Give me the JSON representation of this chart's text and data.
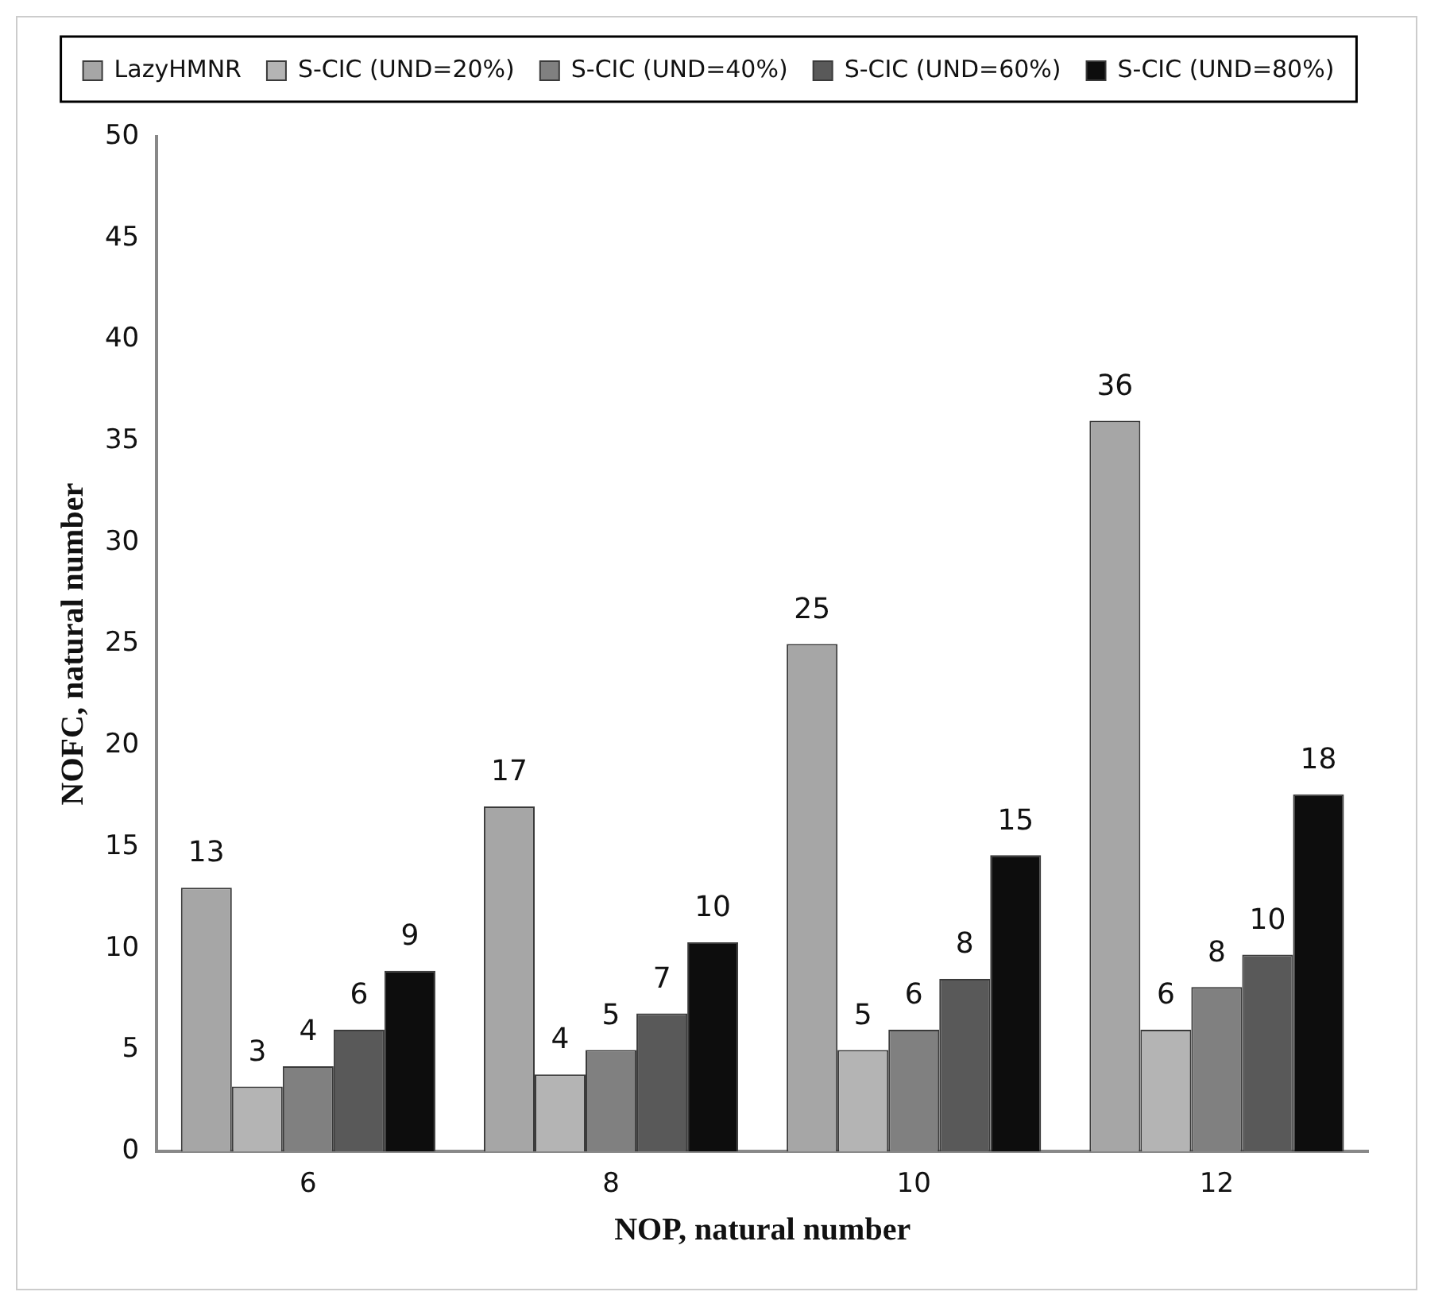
{
  "chart_data": {
    "type": "bar",
    "xlabel": "NOP, natural number",
    "ylabel": "NOFC, natural number",
    "categories": [
      "6",
      "8",
      "10",
      "12"
    ],
    "series": [
      {
        "name": "LazyHMNR",
        "color": "#a6a6a6",
        "values": [
          13,
          17,
          25,
          36
        ],
        "value_labels": [
          "13",
          "17",
          "25",
          "36"
        ]
      },
      {
        "name": "S-CIC (UND=20%)",
        "color": "#b4b4b4",
        "values": [
          3.2,
          3.8,
          5,
          6
        ],
        "value_labels": [
          "3",
          "4",
          "5",
          "6"
        ]
      },
      {
        "name": "S-CIC (UND=40%)",
        "color": "#808080",
        "values": [
          4.2,
          5,
          6,
          8.1
        ],
        "value_labels": [
          "4",
          "5",
          "6",
          "8"
        ]
      },
      {
        "name": "S-CIC (UND=60%)",
        "color": "#595959",
        "values": [
          6,
          6.8,
          8.5,
          9.7
        ],
        "value_labels": [
          "6",
          "7",
          "8",
          "10"
        ]
      },
      {
        "name": "S-CIC (UND=80%)",
        "color": "#0d0d0d",
        "values": [
          8.9,
          10.3,
          14.6,
          17.6
        ],
        "value_labels": [
          "9",
          "10",
          "15",
          "18"
        ]
      }
    ],
    "ylim": [
      0,
      50
    ],
    "yticks": [
      0,
      5,
      10,
      15,
      20,
      25,
      30,
      35,
      40,
      45,
      50
    ],
    "grid": false,
    "legend": "top"
  }
}
